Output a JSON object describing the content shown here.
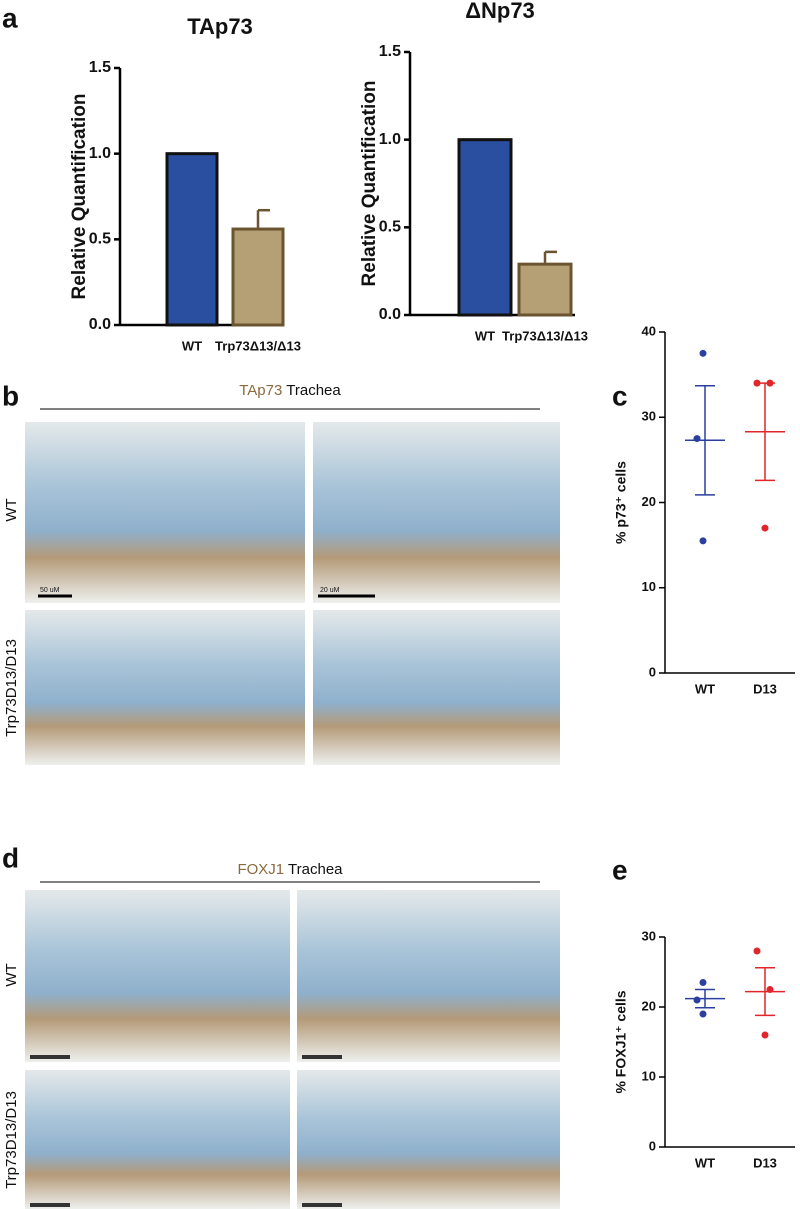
{
  "figure": {
    "panels": [
      "a",
      "b",
      "c",
      "d",
      "e"
    ],
    "b_header": {
      "stain": "TAp73",
      "tissue": "Trachea"
    },
    "d_header": {
      "stain": "FOXJ1",
      "tissue": "Trachea"
    },
    "row_labels": [
      "WT",
      "Trp73D13/D13"
    ],
    "scale_bars": [
      "50 uM",
      "20 uM"
    ]
  },
  "chart_data": [
    {
      "type": "bar",
      "title": "TAp73",
      "ylabel": "Relative Quantification",
      "categories": [
        "WT",
        "Trp73Δ13/Δ13"
      ],
      "values": [
        1.0,
        0.56
      ],
      "errors": [
        null,
        0.11
      ],
      "colors": [
        "#2a4ea0",
        "#b59f74"
      ],
      "ylim": [
        0,
        1.5
      ],
      "yticks": [
        {
          "value": 0,
          "label": "0.0"
        },
        0.5,
        {
          "value": 1,
          "label": "1.0"
        },
        1.5
      ]
    },
    {
      "type": "bar",
      "title": "ΔNp73",
      "ylabel": "Relative Quantification",
      "categories": [
        "WT",
        "Trp73Δ13/Δ13"
      ],
      "values": [
        1.0,
        0.29
      ],
      "errors": [
        null,
        0.07
      ],
      "colors": [
        "#2a4ea0",
        "#b59f74"
      ],
      "ylim": [
        0,
        1.5
      ],
      "yticks": [
        {
          "value": 0,
          "label": "0.0"
        },
        0.5,
        {
          "value": 1,
          "label": "1.0"
        },
        1.5
      ]
    },
    {
      "type": "scatter",
      "ylabel": "% p73⁺ cells",
      "categories": [
        "WT",
        "D13"
      ],
      "groups": [
        {
          "color": "#2b3f9e",
          "points": [
            37.5,
            27.5,
            15.5
          ],
          "mean": 27.3,
          "sem": 6.4
        },
        {
          "color": "#e0262a",
          "points": [
            34,
            34,
            17
          ],
          "mean": 28.3,
          "sem": 5.7
        }
      ],
      "ylim": [
        0,
        40
      ],
      "yticks": [
        0,
        10,
        20,
        30,
        40
      ]
    },
    {
      "type": "scatter",
      "ylabel": "% FOXJ1⁺ cells",
      "categories": [
        "WT",
        "D13"
      ],
      "groups": [
        {
          "color": "#2b3f9e",
          "points": [
            23.5,
            21,
            19
          ],
          "mean": 21.2,
          "sem": 1.3
        },
        {
          "color": "#e0262a",
          "points": [
            28,
            22.5,
            16
          ],
          "mean": 22.2,
          "sem": 3.4
        }
      ],
      "ylim": [
        0,
        30
      ],
      "yticks": [
        0,
        10,
        20,
        30
      ]
    }
  ]
}
